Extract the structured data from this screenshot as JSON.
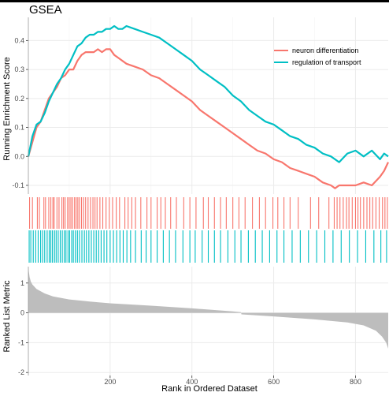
{
  "colors": {
    "series1": "#F8766D",
    "series2": "#00BFC4",
    "metric_fill": "#bdbdbd"
  },
  "chart_data": {
    "type": "line",
    "title": "GSEA",
    "xlabel": "Rank in Ordered Dataset",
    "xlim": [
      0,
      880
    ],
    "x_ticks": [
      200,
      400,
      600,
      800
    ],
    "grid": true,
    "legend_position": "top-right",
    "es_panel": {
      "ylabel": "Running Enrichment Score",
      "ylim": [
        -0.13,
        0.48
      ],
      "y_ticks": [
        -0.1,
        0.0,
        0.1,
        0.2,
        0.3,
        0.4
      ],
      "y_tick_labels": [
        "-0.1",
        "0.0",
        "0.1",
        "0.2",
        "0.3",
        "0.4"
      ]
    },
    "series": [
      {
        "name": "neuron differentiation",
        "color": "#F8766D",
        "x": [
          0,
          10,
          20,
          30,
          40,
          50,
          60,
          70,
          80,
          90,
          100,
          110,
          120,
          130,
          140,
          150,
          160,
          170,
          180,
          190,
          200,
          210,
          220,
          240,
          260,
          280,
          300,
          320,
          340,
          360,
          380,
          400,
          420,
          440,
          460,
          480,
          500,
          520,
          540,
          560,
          580,
          600,
          620,
          640,
          660,
          680,
          700,
          720,
          740,
          750,
          760,
          780,
          800,
          820,
          840,
          860,
          870,
          880
        ],
        "values": [
          0.0,
          0.05,
          0.1,
          0.12,
          0.16,
          0.2,
          0.22,
          0.24,
          0.27,
          0.28,
          0.3,
          0.3,
          0.33,
          0.35,
          0.36,
          0.36,
          0.36,
          0.37,
          0.36,
          0.37,
          0.37,
          0.35,
          0.34,
          0.32,
          0.31,
          0.3,
          0.28,
          0.27,
          0.25,
          0.23,
          0.21,
          0.19,
          0.16,
          0.14,
          0.12,
          0.1,
          0.08,
          0.06,
          0.04,
          0.02,
          0.01,
          -0.01,
          -0.02,
          -0.04,
          -0.05,
          -0.06,
          -0.07,
          -0.09,
          -0.1,
          -0.11,
          -0.1,
          -0.1,
          -0.1,
          -0.09,
          -0.1,
          -0.07,
          -0.05,
          -0.02
        ]
      },
      {
        "name": "regulation of transport",
        "color": "#00BFC4",
        "x": [
          0,
          10,
          20,
          30,
          40,
          50,
          60,
          70,
          80,
          90,
          100,
          110,
          120,
          130,
          140,
          150,
          160,
          170,
          180,
          190,
          200,
          210,
          220,
          230,
          240,
          260,
          280,
          300,
          320,
          340,
          360,
          380,
          400,
          420,
          440,
          460,
          480,
          500,
          520,
          540,
          560,
          580,
          600,
          620,
          640,
          660,
          680,
          700,
          720,
          740,
          760,
          780,
          800,
          820,
          840,
          860,
          870,
          880
        ],
        "values": [
          0.0,
          0.07,
          0.11,
          0.12,
          0.15,
          0.19,
          0.22,
          0.25,
          0.27,
          0.3,
          0.32,
          0.35,
          0.38,
          0.39,
          0.41,
          0.42,
          0.42,
          0.43,
          0.43,
          0.44,
          0.44,
          0.45,
          0.44,
          0.44,
          0.45,
          0.44,
          0.43,
          0.42,
          0.41,
          0.39,
          0.37,
          0.35,
          0.33,
          0.3,
          0.28,
          0.26,
          0.24,
          0.21,
          0.19,
          0.16,
          0.14,
          0.12,
          0.11,
          0.09,
          0.07,
          0.06,
          0.04,
          0.03,
          0.01,
          0.0,
          -0.02,
          0.01,
          0.02,
          0.0,
          0.02,
          -0.01,
          0.01,
          0.0
        ]
      }
    ],
    "hits": [
      {
        "series": "neuron differentiation",
        "positions": [
          3,
          10,
          22,
          27,
          38,
          42,
          50,
          55,
          60,
          63,
          70,
          75,
          82,
          86,
          90,
          96,
          100,
          104,
          108,
          113,
          117,
          121,
          125,
          130,
          135,
          140,
          146,
          152,
          158,
          163,
          168,
          175,
          182,
          190,
          198,
          206,
          215,
          223,
          236,
          244,
          253,
          262,
          275,
          290,
          300,
          315,
          324,
          335,
          348,
          362,
          380,
          395,
          410,
          428,
          440,
          455,
          470,
          484,
          500,
          515,
          530,
          548,
          565,
          580,
          598,
          610,
          625,
          640,
          660,
          690,
          710,
          735,
          748,
          755,
          762,
          770,
          778,
          784,
          792,
          800,
          806,
          812,
          820,
          828,
          835,
          842,
          850,
          858,
          866,
          872,
          878
        ]
      },
      {
        "series": "regulation of transport",
        "positions": [
          2,
          6,
          12,
          18,
          24,
          30,
          35,
          40,
          46,
          51,
          55,
          59,
          64,
          68,
          73,
          78,
          83,
          88,
          92,
          97,
          101,
          106,
          110,
          115,
          120,
          125,
          131,
          137,
          142,
          148,
          154,
          160,
          166,
          172,
          178,
          185,
          192,
          200,
          208,
          216,
          224,
          232,
          241,
          250,
          262,
          276,
          288,
          300,
          315,
          330,
          345,
          360,
          378,
          395,
          408,
          425,
          440,
          455,
          470,
          488,
          505,
          520,
          538,
          555,
          572,
          590,
          608,
          625,
          645,
          665,
          685,
          705,
          725,
          745,
          765,
          785,
          805,
          825,
          845,
          862,
          876
        ]
      }
    ],
    "ranked_metric": {
      "ylabel": "Ranked List Metric",
      "ylim": [
        -2.1,
        1.55
      ],
      "y_ticks": [
        -2,
        -1,
        0,
        1
      ],
      "y_tick_labels": [
        "-2",
        "-1",
        "0",
        "1"
      ],
      "x": [
        0,
        3,
        6,
        10,
        20,
        40,
        60,
        100,
        150,
        200,
        300,
        400,
        500,
        520,
        521,
        600,
        700,
        780,
        820,
        850,
        865,
        875,
        880
      ],
      "values": [
        1.5,
        1.2,
        1.05,
        0.95,
        0.8,
        0.65,
        0.55,
        0.45,
        0.38,
        0.32,
        0.24,
        0.15,
        0.05,
        0.02,
        -0.05,
        -0.12,
        -0.22,
        -0.32,
        -0.42,
        -0.6,
        -0.8,
        -1.0,
        -1.2
      ]
    }
  }
}
